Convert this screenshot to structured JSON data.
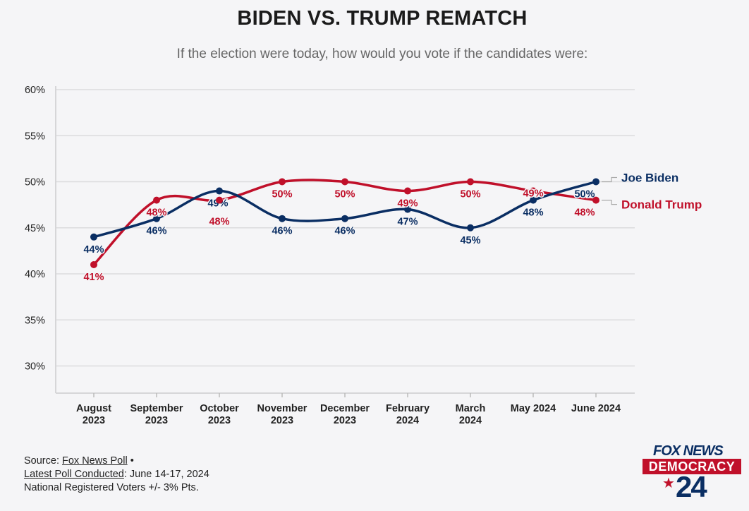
{
  "title": "BIDEN VS. TRUMP REMATCH",
  "subtitle": "If the election were today, how would you vote if the candidates were:",
  "chart_data": {
    "type": "line",
    "title": "BIDEN VS. TRUMP REMATCH",
    "categories": [
      [
        "August",
        "2023"
      ],
      [
        "September",
        "2023"
      ],
      [
        "October",
        "2023"
      ],
      [
        "November",
        "2023"
      ],
      [
        "December",
        "2023"
      ],
      [
        "February",
        "2024"
      ],
      [
        "March",
        "2024"
      ],
      [
        "May 2024",
        ""
      ],
      [
        "June 2024",
        ""
      ]
    ],
    "y_ticks": [
      "60%",
      "55%",
      "50%",
      "45%",
      "40%",
      "35%",
      "30%"
    ],
    "ylim": [
      27,
      60
    ],
    "grid": true,
    "series": [
      {
        "name": "Joe Biden",
        "color": "#0a2e63",
        "values": [
          44,
          46,
          49,
          46,
          46,
          47,
          45,
          48,
          50
        ],
        "labels": [
          "44%",
          "46%",
          "49%",
          "46%",
          "46%",
          "47%",
          "45%",
          "48%",
          "50%"
        ]
      },
      {
        "name": "Donald Trump",
        "color": "#c0102a",
        "values": [
          41,
          48,
          48,
          50,
          50,
          49,
          50,
          49,
          48
        ],
        "labels": [
          "41%",
          "48%",
          "48%",
          "50%",
          "50%",
          "49%",
          "50%",
          "49%",
          "48%"
        ]
      }
    ]
  },
  "source": {
    "prefix": "Source: ",
    "link": "Fox News Poll",
    "bullet": " •",
    "latest_label": "Latest Poll Conducted",
    "latest_value": ": June 14-17, 2024",
    "sample": "National Registered Voters +/- 3% Pts."
  },
  "logo": {
    "brand": "FOX NEWS",
    "banner": "DEMOCRACY",
    "star": "★",
    "year": "24"
  }
}
